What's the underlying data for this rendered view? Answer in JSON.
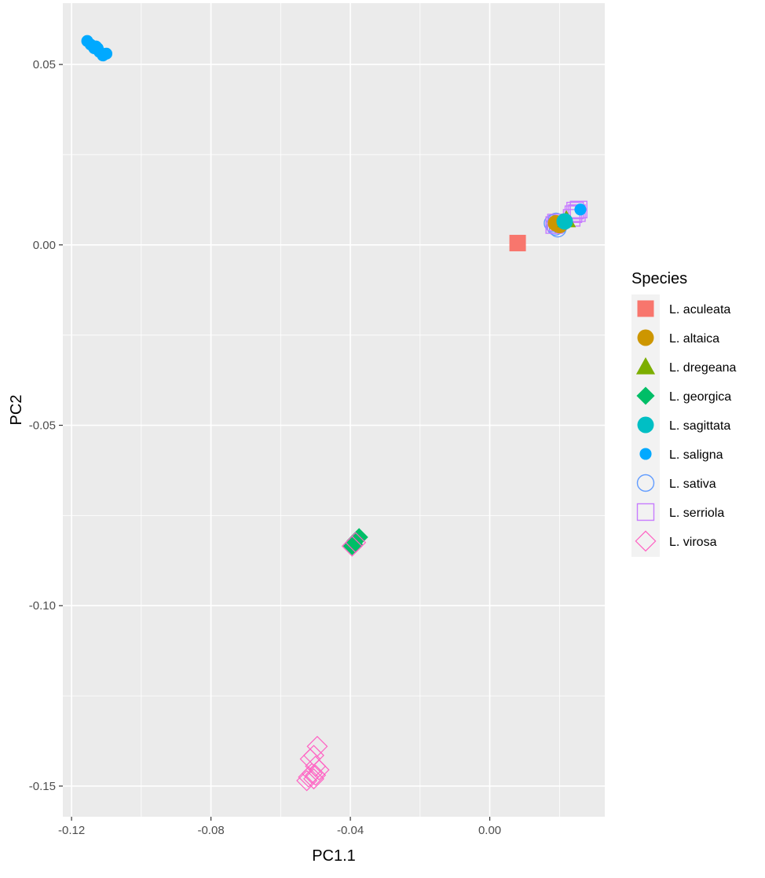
{
  "chart_data": {
    "type": "scatter",
    "xlabel": "PC1.1",
    "ylabel": "PC2",
    "xlim": [
      -0.1225,
      0.033
    ],
    "ylim": [
      -0.1585,
      0.067
    ],
    "xticks": [
      -0.12,
      -0.08,
      -0.04,
      0.0
    ],
    "xtick_labels": [
      "-0.12",
      "-0.08",
      "-0.04",
      "0.00"
    ],
    "yticks": [
      0.05,
      0.0,
      -0.05,
      -0.1,
      -0.15
    ],
    "ytick_labels": [
      "0.05",
      "0.00",
      "-0.05",
      "-0.10",
      "-0.15"
    ],
    "grid": true,
    "panel_background": "#EBEBEB",
    "legend": {
      "title": "Species",
      "placement": "right"
    },
    "series": [
      {
        "name": "L. aculeata",
        "color": "#F8766D",
        "shape": "square-filled",
        "points": [
          [
            0.008,
            0.0005
          ]
        ]
      },
      {
        "name": "L. altaica",
        "color": "#CD9600",
        "shape": "circle-filled",
        "points": [
          [
            0.019,
            0.006
          ],
          [
            0.02,
            0.0055
          ]
        ]
      },
      {
        "name": "L. dregeana",
        "color": "#7CAE00",
        "shape": "triangle-filled",
        "points": [
          [
            0.022,
            0.007
          ]
        ]
      },
      {
        "name": "L. georgica",
        "color": "#00BE67",
        "shape": "diamond-filled",
        "points": [
          [
            -0.0395,
            -0.0835
          ],
          [
            -0.0385,
            -0.082
          ],
          [
            -0.0375,
            -0.081
          ],
          [
            -0.039,
            -0.083
          ]
        ]
      },
      {
        "name": "L. sagittata",
        "color": "#00BFC4",
        "shape": "circle-filled",
        "points": [
          [
            0.0215,
            0.0065
          ]
        ]
      },
      {
        "name": "L. saligna",
        "color": "#00A9FF",
        "shape": "circle-small",
        "points": [
          [
            -0.1155,
            0.0565
          ],
          [
            -0.1145,
            0.0555
          ],
          [
            -0.1135,
            0.0545
          ],
          [
            -0.113,
            0.055
          ],
          [
            -0.112,
            0.0535
          ],
          [
            -0.111,
            0.0525
          ],
          [
            -0.11,
            0.053
          ],
          [
            -0.1125,
            0.0545
          ],
          [
            0.026,
            0.0098
          ]
        ]
      },
      {
        "name": "L. sativa",
        "color": "#619CFF",
        "shape": "circle-open",
        "points": [
          [
            0.018,
            0.006
          ],
          [
            0.0185,
            0.0055
          ],
          [
            0.019,
            0.0065
          ],
          [
            0.0195,
            0.0045
          ],
          [
            0.02,
            0.0055
          ],
          [
            0.0188,
            0.005
          ]
        ]
      },
      {
        "name": "L. serriola",
        "color": "#C77CFF",
        "shape": "square-open",
        "points": [
          [
            0.024,
            0.0085
          ],
          [
            0.0245,
            0.0095
          ],
          [
            0.025,
            0.0088
          ],
          [
            0.0235,
            0.0075
          ],
          [
            0.0255,
            0.0098
          ],
          [
            0.0185,
            0.0055
          ],
          [
            0.019,
            0.0062
          ]
        ]
      },
      {
        "name": "L. virosa",
        "color": "#FF61C3",
        "shape": "diamond-open",
        "points": [
          [
            -0.0495,
            -0.139
          ],
          [
            -0.0505,
            -0.1415
          ],
          [
            -0.0515,
            -0.1425
          ],
          [
            -0.05,
            -0.1445
          ],
          [
            -0.049,
            -0.1455
          ],
          [
            -0.051,
            -0.1465
          ],
          [
            -0.052,
            -0.1475
          ],
          [
            -0.05,
            -0.147
          ],
          [
            -0.0525,
            -0.1485
          ],
          [
            -0.0505,
            -0.148
          ],
          [
            -0.0395,
            -0.0835
          ],
          [
            -0.0385,
            -0.0825
          ]
        ]
      }
    ]
  }
}
